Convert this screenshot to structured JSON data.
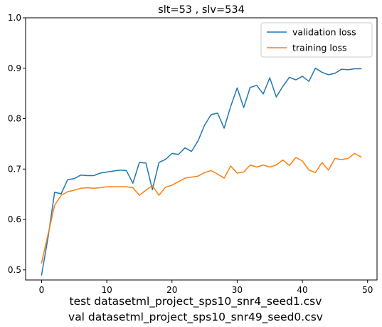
{
  "chart_data": {
    "type": "line",
    "title": "slt=53 , slv=534",
    "xlabel": "",
    "ylabel": "",
    "xlim": [
      -2.45,
      51.45
    ],
    "ylim": [
      0.48,
      1.0
    ],
    "xticks": [
      0,
      10,
      20,
      30,
      40,
      50
    ],
    "yticks": [
      0.5,
      0.6,
      0.7,
      0.8,
      0.9,
      1.0
    ],
    "ytick_labels": [
      "0.5",
      "0.6",
      "0.7",
      "0.8",
      "0.9",
      "1.0"
    ],
    "grid": false,
    "legend_position": "top-right",
    "series": [
      {
        "name": "validation loss",
        "color": "#1f77b4",
        "x": [
          0,
          1,
          2,
          3,
          4,
          5,
          6,
          7,
          8,
          9,
          10,
          11,
          12,
          13,
          14,
          15,
          16,
          17,
          18,
          19,
          20,
          21,
          22,
          23,
          24,
          25,
          26,
          27,
          28,
          29,
          30,
          31,
          32,
          33,
          34,
          35,
          36,
          37,
          38,
          39,
          40,
          41,
          42,
          43,
          44,
          45,
          46,
          47,
          48,
          49
        ],
        "values": [
          0.49,
          0.565,
          0.654,
          0.651,
          0.679,
          0.681,
          0.688,
          0.687,
          0.687,
          0.692,
          0.694,
          0.696,
          0.698,
          0.697,
          0.672,
          0.713,
          0.712,
          0.659,
          0.713,
          0.719,
          0.731,
          0.729,
          0.742,
          0.735,
          0.756,
          0.787,
          0.808,
          0.811,
          0.781,
          0.824,
          0.861,
          0.822,
          0.862,
          0.866,
          0.849,
          0.881,
          0.843,
          0.864,
          0.882,
          0.877,
          0.884,
          0.874,
          0.9,
          0.892,
          0.887,
          0.89,
          0.898,
          0.897,
          0.899,
          0.899
        ]
      },
      {
        "name": "training loss",
        "color": "#ff7f0e",
        "x": [
          0,
          1,
          2,
          3,
          4,
          5,
          6,
          7,
          8,
          9,
          10,
          11,
          12,
          13,
          14,
          15,
          16,
          17,
          18,
          19,
          20,
          21,
          22,
          23,
          24,
          25,
          26,
          27,
          28,
          29,
          30,
          31,
          32,
          33,
          34,
          35,
          36,
          37,
          38,
          39,
          40,
          41,
          42,
          43,
          44,
          45,
          46,
          47,
          48,
          49
        ],
        "values": [
          0.514,
          0.571,
          0.628,
          0.648,
          0.655,
          0.658,
          0.662,
          0.663,
          0.662,
          0.663,
          0.665,
          0.665,
          0.665,
          0.665,
          0.663,
          0.648,
          0.658,
          0.667,
          0.648,
          0.664,
          0.668,
          0.675,
          0.682,
          0.684,
          0.686,
          0.693,
          0.697,
          0.69,
          0.682,
          0.706,
          0.692,
          0.694,
          0.708,
          0.704,
          0.708,
          0.704,
          0.708,
          0.718,
          0.707,
          0.723,
          0.716,
          0.698,
          0.693,
          0.713,
          0.698,
          0.721,
          0.719,
          0.721,
          0.731,
          0.724
        ]
      }
    ],
    "captions": [
      "test datasetml_project_sps10_snr4_seed1.csv",
      "val datasetml_project_sps10_snr49_seed0.csv"
    ]
  }
}
